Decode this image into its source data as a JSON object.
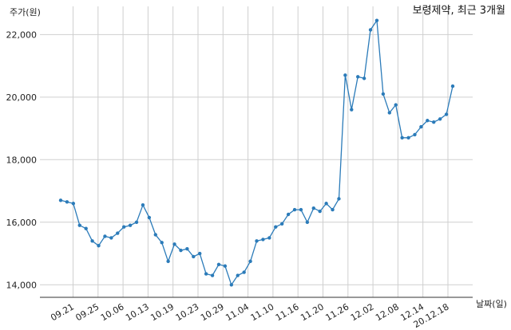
{
  "chart_data": {
    "type": "line",
    "title": "보령제약, 최근 3개월",
    "ylabel": "주가(원)",
    "xlabel": "날짜(일)",
    "ylim": [
      13600,
      22900
    ],
    "yticks": [
      14000,
      16000,
      18000,
      20000,
      22000
    ],
    "ytick_labels": [
      "14,000",
      "16,000",
      "18,000",
      "20,000",
      "22,000"
    ],
    "xticks": [
      "09.21",
      "09.25",
      "10.06",
      "10.13",
      "10.19",
      "10.23",
      "10.29",
      "11.04",
      "11.10",
      "11.16",
      "11.20",
      "11.26",
      "12.02",
      "12.08",
      "12.14",
      "20.12.18"
    ],
    "grid": true,
    "line_color": "#2b7bb9",
    "series": [
      {
        "values": [
          16700,
          16650,
          16600,
          15900,
          15800,
          15400,
          15250,
          15550,
          15500,
          15650,
          15850,
          15900,
          16000,
          16550,
          16150,
          15600,
          15350,
          14750,
          15300,
          15100,
          15150,
          14900,
          15000,
          14350,
          14300,
          14650,
          14600,
          14000,
          14300,
          14400,
          14750,
          15400,
          15450,
          15500,
          15850,
          15950,
          16250,
          16400,
          16400,
          16000,
          16450,
          16350,
          16600,
          16400,
          16750,
          20700,
          19600,
          20650,
          20600,
          22150,
          22450,
          20100,
          19500,
          19750,
          18700,
          18700,
          18800,
          19050,
          19250,
          19200,
          19300,
          19450,
          20350
        ]
      }
    ]
  }
}
